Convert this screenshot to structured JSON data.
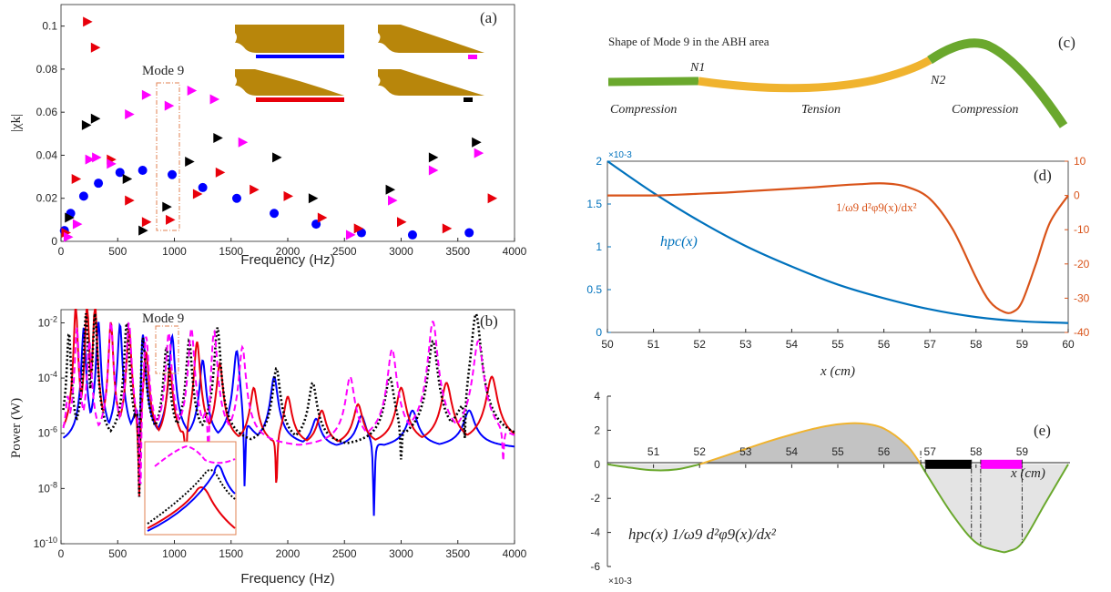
{
  "colors": {
    "blue": "#0000ff",
    "red": "#e8000b",
    "black": "#000000",
    "magenta": "#ff00ff",
    "matlab_blue": "#0072bd",
    "matlab_orange": "#d95319",
    "green": "#6aa82d",
    "gold": "#f0b32e",
    "bronze": "#b8860b"
  },
  "chart_data": [
    {
      "id": "a",
      "type": "scatter",
      "panel_label": "(a)",
      "xlabel": "Frequency (Hz)",
      "ylabel": "|χk|",
      "xlim": [
        0,
        4000
      ],
      "ylim": [
        0,
        0.11
      ],
      "xticks": [
        "0",
        "500",
        "1000",
        "1500",
        "2000",
        "2500",
        "3000",
        "3500",
        "4000"
      ],
      "yticks": [
        "0",
        "0.02",
        "0.04",
        "0.06",
        "0.08",
        "0.1"
      ],
      "annotation": "Mode 9",
      "series": [
        {
          "color": "blue",
          "marker": "circle",
          "points": [
            [
              30,
              0.005
            ],
            [
              85,
              0.013
            ],
            [
              200,
              0.021
            ],
            [
              330,
              0.027
            ],
            [
              520,
              0.032
            ],
            [
              720,
              0.033
            ],
            [
              980,
              0.031
            ],
            [
              1250,
              0.025
            ],
            [
              1550,
              0.02
            ],
            [
              1880,
              0.013
            ],
            [
              2250,
              0.008
            ],
            [
              2650,
              0.004
            ],
            [
              3100,
              0.003
            ],
            [
              3600,
              0.004
            ]
          ]
        },
        {
          "color": "red",
          "marker": "triangle",
          "points": [
            [
              40,
              0.004
            ],
            [
              130,
              0.029
            ],
            [
              230,
              0.102
            ],
            [
              300,
              0.09
            ],
            [
              440,
              0.038
            ],
            [
              600,
              0.019
            ],
            [
              750,
              0.009
            ],
            [
              960,
              0.01
            ],
            [
              1200,
              0.022
            ],
            [
              1400,
              0.032
            ],
            [
              1700,
              0.024
            ],
            [
              2000,
              0.021
            ],
            [
              2300,
              0.011
            ],
            [
              2620,
              0.006
            ],
            [
              3000,
              0.009
            ],
            [
              3400,
              0.006
            ],
            [
              3800,
              0.02
            ]
          ]
        },
        {
          "color": "black",
          "marker": "triangle",
          "points": [
            [
              70,
              0.011
            ],
            [
              220,
              0.054
            ],
            [
              300,
              0.057
            ],
            [
              580,
              0.029
            ],
            [
              720,
              0.005
            ],
            [
              930,
              0.016
            ],
            [
              1130,
              0.037
            ],
            [
              1380,
              0.048
            ],
            [
              1900,
              0.039
            ],
            [
              2220,
              0.02
            ],
            [
              2900,
              0.024
            ],
            [
              3280,
              0.039
            ],
            [
              3660,
              0.046
            ]
          ]
        },
        {
          "color": "magenta",
          "marker": "triangle",
          "points": [
            [
              60,
              0.002
            ],
            [
              140,
              0.008
            ],
            [
              250,
              0.038
            ],
            [
              310,
              0.039
            ],
            [
              440,
              0.036
            ],
            [
              600,
              0.059
            ],
            [
              750,
              0.068
            ],
            [
              950,
              0.063
            ],
            [
              1150,
              0.07
            ],
            [
              1350,
              0.066
            ],
            [
              1600,
              0.046
            ],
            [
              2550,
              0.003
            ],
            [
              2920,
              0.019
            ],
            [
              3280,
              0.033
            ],
            [
              3680,
              0.041
            ]
          ]
        }
      ]
    },
    {
      "id": "b",
      "type": "line",
      "panel_label": "(b)",
      "xlabel": "Frequency (Hz)",
      "ylabel": "Power (W)",
      "xlim": [
        0,
        4000
      ],
      "ylim": [
        1e-10,
        0.03
      ],
      "yscale": "log",
      "xticks": [
        "0",
        "500",
        "1000",
        "1500",
        "2000",
        "2500",
        "3000",
        "3500",
        "4000"
      ],
      "yticks": [
        "10-10",
        "10-8",
        "10-6",
        "10-4",
        "10-2"
      ],
      "annotation": "Mode 9",
      "series_style": [
        {
          "color": "blue",
          "dash": "solid",
          "peaks": [
            [
              200,
              0.003
            ],
            [
              330,
              0.005
            ],
            [
              520,
              0.004
            ],
            [
              720,
              0.004
            ],
            [
              980,
              0.0015
            ],
            [
              1250,
              0.0002
            ],
            [
              1550,
              0.0005
            ],
            [
              1880,
              5e-05
            ],
            [
              2250,
              1.5e-06
            ],
            [
              2650,
              2e-06
            ],
            [
              3100,
              3e-06
            ],
            [
              3600,
              3e-06
            ]
          ],
          "antires": [
            [
              690,
              5e-09
            ],
            [
              1620,
              1e-08
            ],
            [
              2760,
              1e-09
            ]
          ]
        },
        {
          "color": "red",
          "dash": "solid",
          "peaks": [
            [
              130,
              0.02
            ],
            [
              230,
              0.02
            ],
            [
              300,
              0.02
            ],
            [
              440,
              0.005
            ],
            [
              600,
              0.003
            ],
            [
              750,
              0.0005
            ],
            [
              960,
              0.0001
            ],
            [
              1200,
              0.001
            ],
            [
              1400,
              0.00015
            ],
            [
              1700,
              2e-05
            ],
            [
              2000,
              1e-05
            ],
            [
              2300,
              3e-06
            ],
            [
              2620,
              5e-06
            ],
            [
              3000,
              2e-05
            ],
            [
              3400,
              3e-05
            ],
            [
              3800,
              5e-05
            ]
          ],
          "antires": [
            [
              690,
              5e-09
            ],
            [
              1100,
              3e-08
            ],
            [
              1900,
              1e-08
            ]
          ]
        },
        {
          "color": "black",
          "dash": "dot",
          "peaks": [
            [
              70,
              0.002
            ],
            [
              220,
              0.01
            ],
            [
              300,
              0.01
            ],
            [
              580,
              0.005
            ],
            [
              720,
              0.003
            ],
            [
              930,
              0.0006
            ],
            [
              1130,
              0.001
            ],
            [
              1380,
              0.003
            ],
            [
              1900,
              0.0001
            ],
            [
              2220,
              3e-05
            ],
            [
              2900,
              5e-05
            ],
            [
              3280,
              0.001
            ],
            [
              3660,
              0.01
            ]
          ],
          "antires": [
            [
              690,
              5e-09
            ],
            [
              3000,
              1e-07
            ],
            [
              3560,
              5e-07
            ]
          ]
        },
        {
          "color": "magenta",
          "dash": "dash",
          "peaks": [
            [
              60,
              1e-05
            ],
            [
              140,
              0.003
            ],
            [
              250,
              0.001
            ],
            [
              440,
              0.005
            ],
            [
              600,
              0.005
            ],
            [
              750,
              0.002
            ],
            [
              950,
              0.002
            ],
            [
              1150,
              0.003
            ],
            [
              1350,
              0.003
            ],
            [
              1600,
              0.0006
            ],
            [
              2550,
              5e-05
            ],
            [
              2920,
              0.0005
            ],
            [
              3280,
              0.005
            ],
            [
              3680,
              0.001
            ]
          ],
          "antires": [
            [
              700,
              5e-09
            ],
            [
              1300,
              5e-08
            ],
            [
              3900,
              1e-07
            ]
          ]
        }
      ]
    },
    {
      "id": "c",
      "type": "diagram",
      "panel_label": "(c)",
      "title": "Shape of Mode 9 in the ABH area",
      "labels": [
        "N1",
        "N2",
        "Compression",
        "Tension",
        "Compression"
      ]
    },
    {
      "id": "d",
      "type": "line",
      "panel_label": "(d)",
      "xlabel": "x (cm)",
      "xlim": [
        50,
        60
      ],
      "xticks": [
        "50",
        "51",
        "52",
        "53",
        "54",
        "55",
        "56",
        "57",
        "58",
        "59",
        "60"
      ],
      "yleft_ticks": [
        "0",
        "0.5",
        "1",
        "1.5",
        "2"
      ],
      "yleft_multiplier": "×10-3",
      "yleft_lim": [
        0,
        2
      ],
      "yright_ticks": [
        "-40",
        "-30",
        "-20",
        "-10",
        "0",
        "10"
      ],
      "yright_lim": [
        -40,
        10
      ],
      "series": [
        {
          "name": "hpc(x)",
          "axis": "left",
          "color": "matlab_blue",
          "x": [
            50,
            51,
            52,
            53,
            54,
            55,
            56,
            57,
            58,
            59,
            60
          ],
          "y": [
            2.0,
            1.63,
            1.3,
            1.01,
            0.77,
            0.56,
            0.4,
            0.27,
            0.18,
            0.13,
            0.11
          ]
        },
        {
          "name": "1/ω9 d²φ9(x)/dx²",
          "axis": "right",
          "color": "matlab_orange",
          "x": [
            50,
            50.5,
            51,
            51.5,
            52,
            52.5,
            53,
            53.5,
            54,
            54.5,
            55,
            55.5,
            56,
            56.5,
            57,
            57.5,
            58,
            58.3,
            58.6,
            58.8,
            59,
            59.3,
            59.6,
            60
          ],
          "y": [
            0,
            0,
            0,
            0.2,
            0.5,
            0.8,
            1.2,
            1.6,
            2,
            2.4,
            2.9,
            3.3,
            3.5,
            2.5,
            -1,
            -10,
            -24,
            -31,
            -34,
            -34,
            -31,
            -20,
            -8,
            0
          ]
        }
      ]
    },
    {
      "id": "e",
      "type": "area",
      "panel_label": "(e)",
      "xlabel": "x (cm)",
      "xlim": [
        50,
        60
      ],
      "ylim": [
        -6,
        4
      ],
      "yticks": [
        "-6",
        "-4",
        "-2",
        "0",
        "2",
        "4"
      ],
      "ymultiplier": "×10-3",
      "xticks_inside": [
        "51",
        "52",
        "53",
        "54",
        "55",
        "56",
        "57",
        "58",
        "59"
      ],
      "curve_label": "hpc(x) 1/ω9 d²φ9(x)/dx²",
      "series": [
        {
          "x": [
            50,
            50.5,
            51,
            51.5,
            52,
            52.5,
            53,
            53.5,
            54,
            54.5,
            55,
            55.5,
            56,
            56.5,
            56.8,
            57,
            57.5,
            58,
            58.5,
            58.7,
            59,
            59.5,
            60
          ],
          "y": [
            0,
            -0.2,
            -0.35,
            -0.3,
            0,
            0.45,
            0.9,
            1.35,
            1.75,
            2.1,
            2.35,
            2.4,
            2.1,
            1.1,
            0,
            -0.9,
            -3.0,
            -4.6,
            -5.1,
            -5.1,
            -4.6,
            -2.3,
            0
          ]
        }
      ],
      "patches": [
        {
          "color": "black",
          "x_range": [
            56.9,
            57.9
          ]
        },
        {
          "color": "magenta",
          "x_range": [
            58.1,
            59.0
          ]
        }
      ]
    }
  ]
}
